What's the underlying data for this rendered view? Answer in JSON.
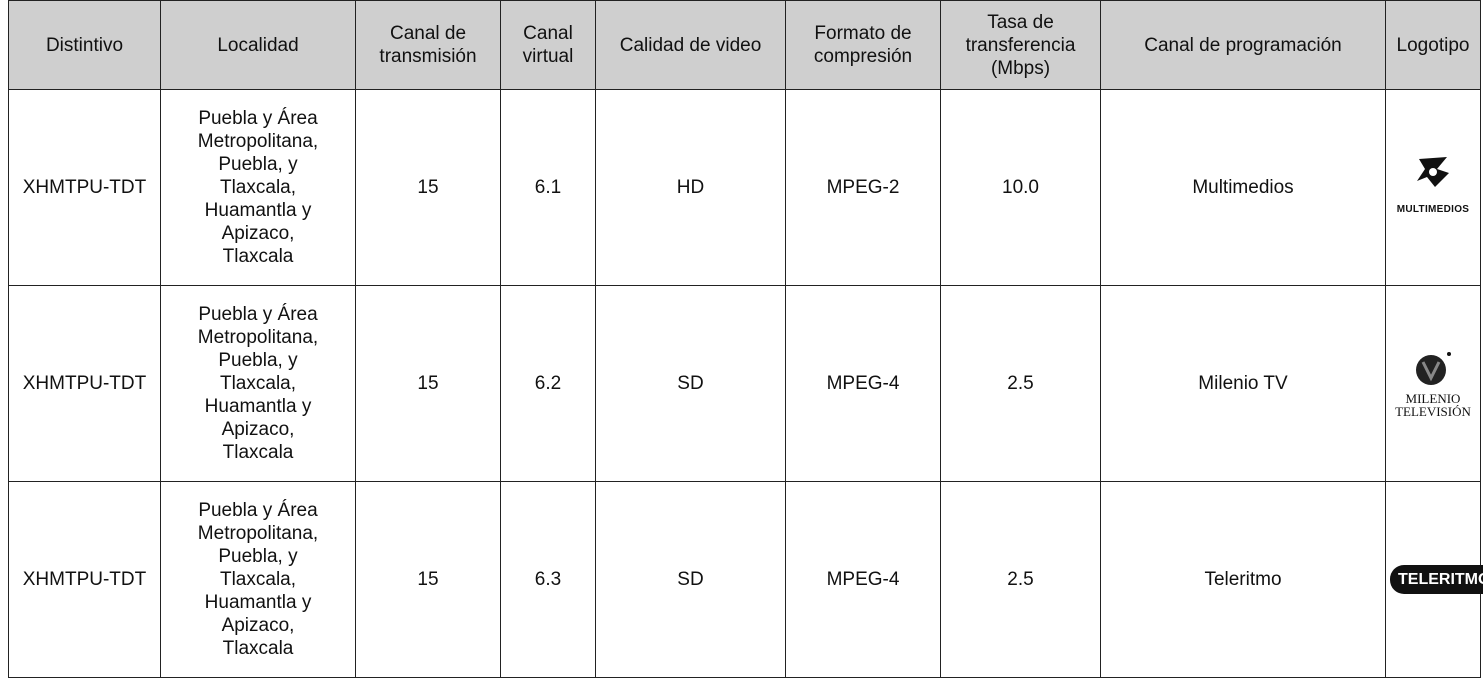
{
  "table": {
    "headers": [
      "Distintivo",
      "Localidad",
      "Canal de transmisión",
      "Canal virtual",
      "Calidad de video",
      "Formato de compresión",
      "Tasa de transferencia (Mbps)",
      "Canal de programación",
      "Logotipo"
    ],
    "rows": [
      [
        "XHMTPU-TDT",
        "Puebla y Área Metropolitana, Puebla, y Tlaxcala, Huamantla y Apizaco, Tlaxcala",
        "15",
        "6.1",
        "HD",
        "MPEG-2",
        "10.0",
        "Multimedios"
      ],
      [
        "XHMTPU-TDT",
        "Puebla y Área Metropolitana, Puebla, y Tlaxcala, Huamantla y Apizaco, Tlaxcala",
        "15",
        "6.2",
        "SD",
        "MPEG-4",
        "2.5",
        "Milenio TV"
      ],
      [
        "XHMTPU-TDT",
        "Puebla y Área Metropolitana, Puebla, y Tlaxcala, Huamantla y Apizaco, Tlaxcala",
        "15",
        "6.3",
        "SD",
        "MPEG-4",
        "2.5",
        "Teleritmo"
      ]
    ],
    "logos": [
      [
        "MULTIMEDIOS"
      ],
      [
        "MILENIO",
        "TELEVISIÓN"
      ],
      [
        "TELERITMO"
      ]
    ]
  }
}
